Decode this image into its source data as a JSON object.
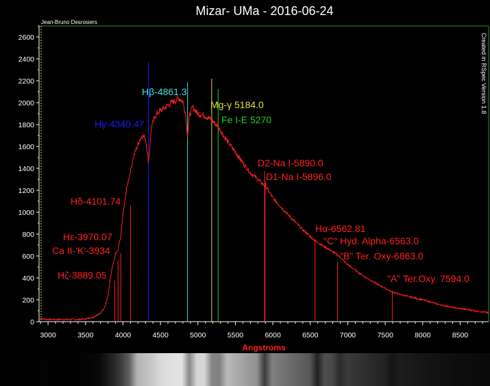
{
  "chart_data": {
    "type": "line",
    "title": "Mizar- UMa - 2016-06-24",
    "author": "Jean-Bruno Desrosiers",
    "software_credit": "Created in RSpec Version 1.8",
    "xlabel": "Angstroms",
    "ylabel": "",
    "xlim": [
      2880,
      8880
    ],
    "ylim": [
      0,
      2700
    ],
    "x_ticks": [
      3000,
      3500,
      4000,
      4500,
      5000,
      5500,
      6000,
      6500,
      7000,
      7500,
      8000,
      8500
    ],
    "y_ticks": [
      0,
      200,
      400,
      600,
      800,
      1000,
      1200,
      1400,
      1600,
      1800,
      2000,
      2200,
      2400,
      2600
    ],
    "grid": false,
    "colors": {
      "background": "#000000",
      "spectrum": "#ff2020",
      "frame": "#2f8f2f"
    },
    "series": [
      {
        "color": "#ff2020",
        "x": [
          2880,
          3000,
          3200,
          3400,
          3500,
          3600,
          3700,
          3750,
          3800,
          3850,
          3889,
          3900,
          3934,
          3950,
          3970,
          4000,
          4050,
          4101,
          4150,
          4200,
          4250,
          4300,
          4340,
          4380,
          4420,
          4480,
          4550,
          4650,
          4750,
          4800,
          4830,
          4861,
          4890,
          4930,
          5000,
          5100,
          5184,
          5270,
          5400,
          5500,
          5600,
          5700,
          5800,
          5890,
          5896,
          6000,
          6200,
          6400,
          6563,
          6700,
          6863,
          7000,
          7200,
          7400,
          7594,
          7800,
          8000,
          8200,
          8400,
          8600,
          8880
        ],
        "values": [
          30,
          20,
          20,
          20,
          25,
          40,
          80,
          120,
          240,
          480,
          570,
          620,
          640,
          720,
          770,
          980,
          1220,
          1380,
          1530,
          1620,
          1700,
          1680,
          1460,
          1770,
          1870,
          1920,
          1950,
          2000,
          2040,
          2010,
          1920,
          1700,
          1890,
          1960,
          1900,
          1880,
          1840,
          1780,
          1640,
          1550,
          1450,
          1360,
          1300,
          1240,
          1250,
          1130,
          980,
          840,
          740,
          680,
          610,
          520,
          420,
          340,
          270,
          230,
          200,
          160,
          130,
          110,
          80
        ]
      }
    ],
    "annotations": [
      {
        "text": "Hβ-4861.3",
        "wavelength": 4861.3,
        "color": "#40e0e0"
      },
      {
        "text": "Mg-γ 5184.0",
        "wavelength": 5184.0,
        "color": "#e0e040"
      },
      {
        "text": "Hγ-4340.47",
        "wavelength": 4340.47,
        "color": "#1a1aff"
      },
      {
        "text": "Fe I-E 5270",
        "wavelength": 5270,
        "color": "#20d020"
      },
      {
        "text": "D2-Na I-5890.0",
        "wavelength": 5890.0,
        "color": "#ff2020"
      },
      {
        "text": "D1-Na I-5896.0",
        "wavelength": 5896.0,
        "color": "#ff2020"
      },
      {
        "text": "Hδ-4101.74",
        "wavelength": 4101.74,
        "color": "#ff2020"
      },
      {
        "text": "Hα-6562.81",
        "wavelength": 6562.81,
        "color": "#ff2020"
      },
      {
        "text": "Hε-3970.07",
        "wavelength": 3970.07,
        "color": "#ff2020"
      },
      {
        "text": "\"C\" Hyd. Alpha-6563.0",
        "wavelength": 6563.0,
        "color": "#ff2020"
      },
      {
        "text": "Ca II-'K'-3934",
        "wavelength": 3934,
        "color": "#ff2020"
      },
      {
        "text": "\"B\" Ter. Oxy-6863.0",
        "wavelength": 6863.0,
        "color": "#ff2020"
      },
      {
        "text": "Hζ-3889.05",
        "wavelength": 3889.05,
        "color": "#ff2020"
      },
      {
        "text": "\"A\" Ter.Oxy. 7594.0",
        "wavelength": 7594.0,
        "color": "#ff2020"
      }
    ],
    "spectrum_strip": true
  }
}
